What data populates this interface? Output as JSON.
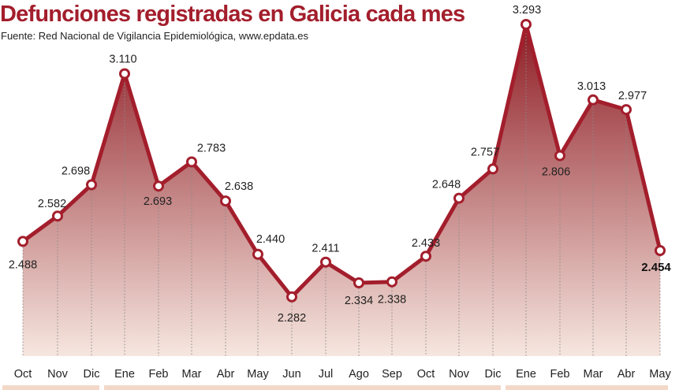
{
  "header": {
    "title": "Defunciones registradas en Galicia cada mes",
    "source": "Fuente: Red Nacional de Vigilancia Epidemiológica, www.epdata.es"
  },
  "colors": {
    "line": "#a31e2c",
    "title": "#a31e2c",
    "fill_top": "#8e1c24",
    "fill_bottom": "#f6e6df",
    "year_bar": "#f3d8c8"
  },
  "chart_data": {
    "type": "area",
    "title": "Defunciones registradas en Galicia cada mes",
    "categories": [
      "Oct",
      "Nov",
      "Dic",
      "Ene",
      "Feb",
      "Mar",
      "Abr",
      "May",
      "Jun",
      "Jul",
      "Ago",
      "Sep",
      "Oct",
      "Nov",
      "Dic",
      "Ene",
      "Feb",
      "Mar",
      "Abr",
      "May"
    ],
    "values": [
      2488,
      2582,
      2698,
      3110,
      2693,
      2783,
      2638,
      2440,
      2282,
      2411,
      2334,
      2338,
      2433,
      2648,
      2757,
      3293,
      2806,
      3013,
      2977,
      2454
    ],
    "value_labels": [
      "2.488",
      "2.582",
      "2.698",
      "3.110",
      "2.693",
      "2.783",
      "2.638",
      "2.440",
      "2.282",
      "2.411",
      "2.334",
      "2.338",
      "2.433",
      "2.648",
      "2.757",
      "3.293",
      "2.806",
      "3.013",
      "2.977",
      "2.454"
    ],
    "highlight_last": true,
    "ylim": [
      1900,
      3350
    ],
    "grid": false,
    "year_groups": [
      [
        0,
        2
      ],
      [
        3,
        14
      ],
      [
        15,
        19
      ]
    ]
  }
}
